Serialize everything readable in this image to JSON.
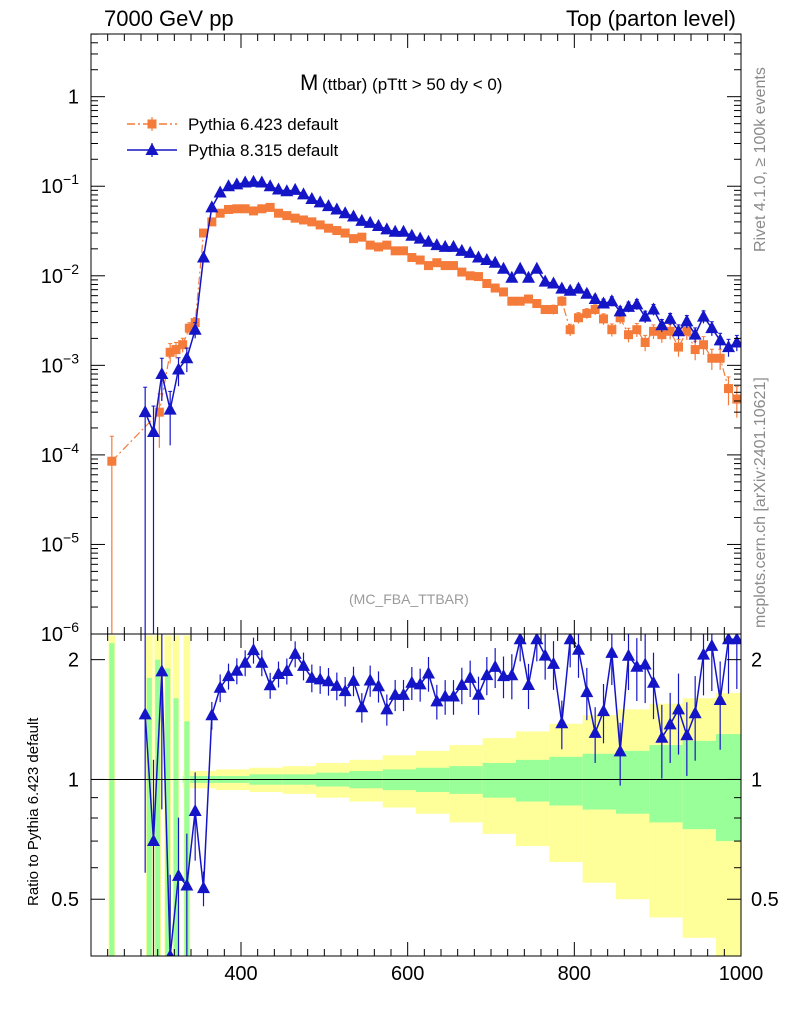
{
  "header": {
    "left": "7000 GeV pp",
    "right": "Top (parton level)"
  },
  "side_labels": {
    "rivet": "Rivet 4.1.0, ≥ 100k events",
    "mcplots": "mcplots.cern.ch [arXiv:2401.10621]"
  },
  "chart_data": {
    "type": "line",
    "title_main": "M",
    "title_sub": "(ttbar) (pTtt > 50 dy < 0)",
    "watermark": "(MC_FBA_TTBAR)",
    "xlim": [
      220,
      1000
    ],
    "ylim_log10": [
      -6,
      0.7
    ],
    "ratio_ylabel": "Ratio to Pythia 6.423 default",
    "ratio_ylim": [
      0.36,
      2.32
    ],
    "x_tick_labels": [
      "400",
      "600",
      "800",
      "1000"
    ],
    "x_tick_values": [
      400,
      600,
      800,
      1000
    ],
    "y_tick_labels": [
      {
        "base": "1",
        "exp": ""
      },
      {
        "base": "10",
        "exp": "−1"
      },
      {
        "base": "10",
        "exp": "−2"
      },
      {
        "base": "10",
        "exp": "−3"
      },
      {
        "base": "10",
        "exp": "−4"
      },
      {
        "base": "10",
        "exp": "−5"
      },
      {
        "base": "10",
        "exp": "−6"
      }
    ],
    "y_tick_exponents": [
      0,
      -1,
      -2,
      -3,
      -4,
      -5,
      -6
    ],
    "ratio_tick_labels": [
      "2",
      "1",
      "0.5"
    ],
    "ratio_tick_values": [
      2,
      1,
      0.5
    ],
    "series": [
      {
        "name": "Pythia 6.423 default",
        "color": "#f47b3a",
        "marker": "square",
        "x": [
          245,
          302,
          315,
          322,
          330,
          338,
          345,
          355,
          365,
          375,
          385,
          395,
          405,
          415,
          425,
          435,
          445,
          455,
          465,
          475,
          485,
          495,
          505,
          515,
          525,
          535,
          545,
          555,
          565,
          575,
          585,
          595,
          605,
          615,
          625,
          635,
          645,
          655,
          665,
          675,
          685,
          695,
          705,
          715,
          725,
          735,
          745,
          755,
          765,
          775,
          785,
          795,
          805,
          815,
          825,
          835,
          845,
          855,
          865,
          875,
          885,
          895,
          905,
          915,
          925,
          935,
          945,
          955,
          965,
          975,
          985,
          995
        ],
        "y": [
          8.5e-05,
          0.0003,
          0.0014,
          0.0015,
          0.0017,
          0.0026,
          0.003,
          0.03,
          0.04,
          0.05,
          0.055,
          0.056,
          0.056,
          0.053,
          0.056,
          0.058,
          0.05,
          0.047,
          0.044,
          0.042,
          0.04,
          0.037,
          0.034,
          0.032,
          0.03,
          0.026,
          0.027,
          0.022,
          0.021,
          0.022,
          0.019,
          0.019,
          0.016,
          0.015,
          0.013,
          0.014,
          0.013,
          0.013,
          0.011,
          0.01,
          0.0098,
          0.0082,
          0.0073,
          0.0066,
          0.0052,
          0.0052,
          0.0055,
          0.0049,
          0.0042,
          0.0042,
          0.0052,
          0.0025,
          0.0034,
          0.0038,
          0.0042,
          0.0033,
          0.0025,
          0.0034,
          0.0022,
          0.0025,
          0.0018,
          0.0024,
          0.0022,
          0.0024,
          0.0016,
          0.0024,
          0.0015,
          0.0017,
          0.0012,
          0.0012,
          0.00055,
          0.00042
        ],
        "y_err_frac": [
          0.9,
          0.6,
          0.25,
          0.2,
          0.18,
          0.15,
          0.14,
          0.04,
          0.035,
          0.03,
          0.03,
          0.03,
          0.03,
          0.03,
          0.03,
          0.03,
          0.03,
          0.03,
          0.035,
          0.035,
          0.035,
          0.04,
          0.04,
          0.04,
          0.045,
          0.045,
          0.05,
          0.05,
          0.05,
          0.05,
          0.055,
          0.055,
          0.06,
          0.06,
          0.065,
          0.065,
          0.07,
          0.07,
          0.075,
          0.08,
          0.08,
          0.085,
          0.09,
          0.09,
          0.1,
          0.1,
          0.1,
          0.11,
          0.11,
          0.12,
          0.12,
          0.15,
          0.14,
          0.13,
          0.13,
          0.14,
          0.16,
          0.15,
          0.18,
          0.17,
          0.2,
          0.18,
          0.19,
          0.19,
          0.22,
          0.2,
          0.24,
          0.23,
          0.26,
          0.26,
          0.35,
          0.38
        ]
      },
      {
        "name": "Pythia 8.315 default",
        "color": "#1515c8",
        "marker": "triangle",
        "x": [
          285,
          295,
          305,
          315,
          325,
          335,
          345,
          355,
          365,
          375,
          385,
          395,
          405,
          415,
          425,
          435,
          445,
          455,
          465,
          475,
          485,
          495,
          505,
          515,
          525,
          535,
          545,
          555,
          565,
          575,
          585,
          595,
          605,
          615,
          625,
          635,
          645,
          655,
          665,
          675,
          685,
          695,
          705,
          715,
          725,
          735,
          745,
          755,
          765,
          775,
          785,
          795,
          805,
          815,
          825,
          835,
          845,
          855,
          865,
          875,
          885,
          895,
          905,
          915,
          925,
          935,
          945,
          955,
          965,
          975,
          985,
          995
        ],
        "y": [
          0.0003,
          0.00018,
          0.0008,
          0.00032,
          0.0009,
          0.0012,
          0.0025,
          0.016,
          0.058,
          0.085,
          0.1,
          0.105,
          0.11,
          0.112,
          0.11,
          0.1,
          0.092,
          0.088,
          0.091,
          0.081,
          0.072,
          0.066,
          0.06,
          0.055,
          0.05,
          0.046,
          0.041,
          0.039,
          0.036,
          0.033,
          0.031,
          0.031,
          0.028,
          0.026,
          0.024,
          0.022,
          0.021,
          0.021,
          0.019,
          0.018,
          0.016,
          0.015,
          0.014,
          0.012,
          0.0095,
          0.012,
          0.0095,
          0.012,
          0.0086,
          0.0082,
          0.0072,
          0.0068,
          0.0072,
          0.0063,
          0.0055,
          0.0049,
          0.0052,
          0.004,
          0.0045,
          0.0048,
          0.0035,
          0.0042,
          0.0028,
          0.0033,
          0.0024,
          0.0031,
          0.0022,
          0.0035,
          0.0026,
          0.0019,
          0.0016,
          0.0018
        ],
        "y_err_frac": [
          0.9,
          0.95,
          0.5,
          0.6,
          0.35,
          0.3,
          0.2,
          0.05,
          0.03,
          0.03,
          0.025,
          0.025,
          0.025,
          0.025,
          0.025,
          0.025,
          0.025,
          0.025,
          0.025,
          0.03,
          0.03,
          0.03,
          0.03,
          0.03,
          0.035,
          0.035,
          0.035,
          0.04,
          0.04,
          0.04,
          0.04,
          0.04,
          0.045,
          0.045,
          0.05,
          0.05,
          0.05,
          0.05,
          0.055,
          0.055,
          0.06,
          0.06,
          0.065,
          0.07,
          0.08,
          0.07,
          0.08,
          0.07,
          0.08,
          0.09,
          0.09,
          0.1,
          0.1,
          0.1,
          0.11,
          0.12,
          0.12,
          0.13,
          0.13,
          0.13,
          0.15,
          0.14,
          0.16,
          0.15,
          0.18,
          0.16,
          0.19,
          0.16,
          0.18,
          0.2,
          0.22,
          0.2
        ]
      }
    ],
    "ratio_band_inner": [
      0.02,
      0.02,
      0.03,
      0.03,
      0.04,
      0.05,
      0.06,
      0.07,
      0.08,
      0.1,
      0.12,
      0.14,
      0.16,
      0.18,
      0.22,
      0.25,
      0.3
    ],
    "ratio_band_outer": [
      0.05,
      0.06,
      0.07,
      0.08,
      0.1,
      0.12,
      0.15,
      0.18,
      0.22,
      0.27,
      0.32,
      0.38,
      0.45,
      0.5,
      0.55,
      0.6,
      0.65
    ],
    "ratio_band_x": [
      350,
      390,
      430,
      470,
      510,
      550,
      590,
      630,
      670,
      710,
      750,
      790,
      830,
      870,
      910,
      950,
      990
    ]
  }
}
